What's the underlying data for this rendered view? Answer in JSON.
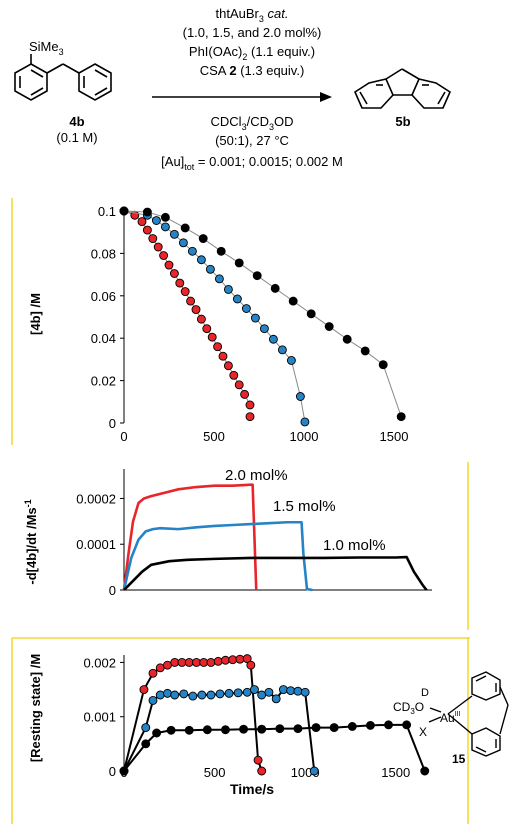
{
  "scheme": {
    "conditions_above": [
      "thtAuBr",
      "(1.0, 1.5, and 2.0 mol%)",
      "PhI(OAc)",
      "CSA",
      "(1.3 equiv.)"
    ],
    "line1_sub": "3",
    "line1_italic": "cat.",
    "line3_sub": "2",
    "line3_tail": "(1.1 equiv.)",
    "line4_bold": "2",
    "solvent_a": "CDCl",
    "solvent_sub": "3",
    "solvent_b": "/CD",
    "solvent_c": "OD",
    "ratio_temp": "(50:1), 27 °C",
    "au_prefix": "[Au]",
    "au_sub": "tot",
    "au_values": " = 0.001; 0.0015; 0.002 M",
    "reactant_sub_label": "SiMe",
    "reactant_sub_index": "3",
    "reactant_label": "4b",
    "reactant_conc": "(0.1 M)",
    "product_label": "5b"
  },
  "colors": {
    "red": "#e8252a",
    "blue": "#2684c6",
    "black": "#000000",
    "frame_yellow": "#f2d10e",
    "grey_line": "#888888"
  },
  "complex": {
    "label": "15",
    "d": "D",
    "cd3o": "CD",
    "cd3o_sub": "3",
    "cd3o_tail": "O",
    "au": "Au",
    "ox": "III",
    "x": "X"
  },
  "chart_data": [
    {
      "type": "scatter",
      "ylabel": "[4b] /M",
      "xlim": [
        0,
        1600
      ],
      "ylim": [
        0,
        0.1
      ],
      "xticks": [
        "0",
        "500",
        "1000",
        "1500"
      ],
      "yticks": [
        "0",
        "0.02",
        "0.04",
        "0.06",
        "0.08",
        "0.1"
      ],
      "series": [
        {
          "color": "red",
          "x": [
            0,
            60,
            100,
            130,
            160,
            190,
            220,
            250,
            280,
            310,
            340,
            370,
            400,
            430,
            460,
            490,
            520,
            550,
            580,
            610,
            640,
            670,
            700
          ],
          "y": [
            0.1,
            0.098,
            0.095,
            0.091,
            0.087,
            0.083,
            0.079,
            0.0745,
            0.0705,
            0.066,
            0.062,
            0.0575,
            0.0535,
            0.049,
            0.0445,
            0.0405,
            0.036,
            0.0315,
            0.027,
            0.0225,
            0.018,
            0.0135,
            0.0085
          ]
        },
        {
          "color": "red",
          "x": [
            700
          ],
          "y": [
            0.003
          ]
        },
        {
          "color": "blue",
          "x": [
            0,
            130,
            180,
            230,
            280,
            330,
            380,
            430,
            480,
            530,
            580,
            630,
            680,
            730,
            780,
            830,
            880,
            930,
            980,
            1005
          ],
          "y": [
            0.1,
            0.098,
            0.0955,
            0.0925,
            0.089,
            0.085,
            0.081,
            0.077,
            0.0725,
            0.068,
            0.063,
            0.0585,
            0.054,
            0.0495,
            0.0445,
            0.0395,
            0.0345,
            0.0295,
            0.0125,
            0.0005
          ]
        },
        {
          "color": "black",
          "x": [
            0,
            130,
            230,
            340,
            440,
            540,
            640,
            740,
            840,
            940,
            1040,
            1140,
            1240,
            1340,
            1440,
            1540
          ],
          "y": [
            0.1,
            0.0995,
            0.097,
            0.092,
            0.087,
            0.081,
            0.0755,
            0.0695,
            0.0635,
            0.0575,
            0.0515,
            0.0455,
            0.0395,
            0.034,
            0.0275,
            0.003
          ]
        }
      ]
    },
    {
      "type": "line",
      "ylabel": "-d[4b]/dt  /Ms",
      "ylabel_sup": "-1",
      "xlim": [
        0,
        1700
      ],
      "ylim": [
        0,
        0.00026
      ],
      "yticks": [
        "0",
        "0.0001",
        "0.0002"
      ],
      "annotations": [
        "2.0 mol%",
        "1.5 mol%",
        "1.0 mol%"
      ],
      "series": [
        {
          "color": "red",
          "x": [
            0,
            25,
            50,
            80,
            110,
            150,
            200,
            300,
            400,
            500,
            600,
            700,
            710,
            730
          ],
          "y": [
            0,
            8e-05,
            0.00015,
            0.00019,
            0.0002,
            0.000205,
            0.00021,
            0.00022,
            0.000225,
            0.000228,
            0.000228,
            0.00023,
            0.00023,
            0
          ]
        },
        {
          "color": "blue",
          "x": [
            0,
            40,
            80,
            120,
            160,
            200,
            300,
            400,
            500,
            600,
            700,
            800,
            900,
            980,
            990,
            1010,
            1040
          ],
          "y": [
            0,
            7e-05,
            0.00011,
            0.000128,
            0.000133,
            0.000135,
            0.000133,
            0.000137,
            0.00014,
            0.000142,
            0.000144,
            0.000146,
            0.000148,
            0.000148,
            8e-05,
            2e-06,
            0
          ]
        },
        {
          "color": "black",
          "x": [
            0,
            100,
            150,
            250,
            350,
            500,
            700,
            900,
            1100,
            1300,
            1500,
            1560,
            1600,
            1650,
            1670
          ],
          "y": [
            0,
            4e-05,
            5.5e-05,
            6.3e-05,
            6.6e-05,
            6.8e-05,
            7e-05,
            7e-05,
            7e-05,
            7.1e-05,
            7.1e-05,
            7.2e-05,
            4e-05,
            1e-05,
            0
          ]
        }
      ]
    },
    {
      "type": "scatter",
      "ylabel": "[Resting state] /M",
      "xlabel": "Time/s",
      "xlim": [
        0,
        1700
      ],
      "ylim": [
        0,
        0.0021
      ],
      "xticks": [
        "0",
        "500",
        "1000",
        "1500"
      ],
      "yticks": [
        "0",
        "0.001",
        "0.002"
      ],
      "series": [
        {
          "color": "red",
          "x": [
            0,
            110,
            160,
            200,
            240,
            280,
            320,
            360,
            400,
            440,
            480,
            520,
            560,
            600,
            640,
            680,
            700,
            740,
            760
          ],
          "y": [
            0,
            0.0015,
            0.0018,
            0.0019,
            0.00195,
            0.002,
            0.002,
            0.002,
            0.002,
            0.002,
            0.002,
            0.00202,
            0.00204,
            0.00205,
            0.00206,
            0.00207,
            0.00195,
            0.0002,
            0
          ]
        },
        {
          "color": "blue",
          "x": [
            0,
            120,
            160,
            200,
            240,
            280,
            330,
            380,
            430,
            480,
            530,
            580,
            630,
            680,
            720,
            760,
            800,
            840,
            880,
            920,
            960,
            1000,
            1050
          ],
          "y": [
            0,
            0.0008,
            0.0013,
            0.0014,
            0.00143,
            0.0014,
            0.00142,
            0.00138,
            0.0014,
            0.0014,
            0.00142,
            0.00143,
            0.00144,
            0.00145,
            0.0015,
            0.0014,
            0.00145,
            0.00133,
            0.0015,
            0.00148,
            0.00147,
            0.00145,
            0
          ]
        },
        {
          "color": "black",
          "x": [
            0,
            120,
            180,
            260,
            360,
            460,
            560,
            660,
            760,
            860,
            960,
            1060,
            1160,
            1260,
            1360,
            1460,
            1560,
            1660
          ],
          "y": [
            0,
            0.0005,
            0.0007,
            0.00075,
            0.00075,
            0.00076,
            0.00076,
            0.00077,
            0.00077,
            0.00078,
            0.00078,
            0.0008,
            0.0008,
            0.00082,
            0.00084,
            0.00085,
            0.00085,
            0
          ]
        }
      ]
    }
  ]
}
